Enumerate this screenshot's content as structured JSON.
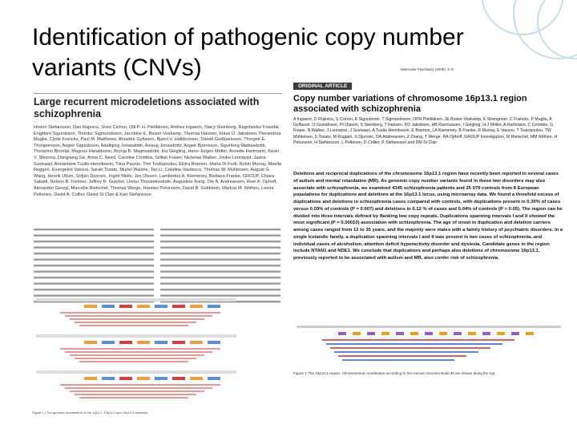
{
  "slide": {
    "title": "Identification of pathogenic copy number variants (CNVs)"
  },
  "left_paper": {
    "title": "Large recurrent microdeletions associated with schizophrenia",
    "authors": "Hreinn Stefansson, Dan Rujescu, Sven Cichon, Olli P. H. Pietiläinen, Andres Ingason, Stacy Steinberg, Ragnheidur Fossdal, Engilbert Sigurdsson, Thordur Sigmundsson, Jacobine E. Buizer-Voskamp, Thomas Hansen, Klaus D. Jakobsen, Pierandrea Muglia, Clyde Francks, Paul M. Matthews, Arnaldur Gylfason, Bjarni V. Halldorsson, Daniel Gudbjartsson, Thorgeir E. Thorgeirsson, Asgeir Sigurdsson, Adalbjorg Jonasdottir, Aslaug Jonasdottir, Asgeir Bjornsson, Sigurborg Mattiasdottir, Thorarinn Blondal, Magnus Haraldsson, Brynja B. Magnusdottir, Ina Giegling, Hans-Jürgen Möller, Annette Hartmann, Kevin V. Shianna, Dongliang Ge, Anna C. Need, Caroline Crombie, Gillian Fraser, Nicholas Walker, Jouko Lonnqvist, Jaana Suvisaari, Annamarie Tuulio-Henriksson, Tiina Paunio, Timi Toulopoulou, Elvira Bramon, Marta Di Forti, Robin Murray, Mirella Ruggeri, Evangelos Vassos, Sarah Tosato, Muriel Walshe, Tao Li, Catalina Vasilescu, Thomas W. Mühleisen, August G. Wang, Henrik Ullum, Srdjan Djurovic, Ingrid Melle, Jes Olesen, Lambertus A. Kiemeney, Barbara Franke, GROUP, Chiara Sabatti, Nelson B. Freimer, Jeffrey R. Gulcher, Unnur Thorsteinsdottir, Augustine Kong, Ole A. Andreassen, Roel A. Ophoff, Alexander Georgi, Marcella Rietschel, Thomas Werge, Hannes Petursson, David B. Goldstein, Markus M. Nöthen, Leena Peltonen, David A. Collier, David St Clair & Kari Stefansson",
    "caption": "Figure 1 | The genomic architecture of the 1q21.1, 15q11.2 and 15q13.3 deletions."
  },
  "right_paper": {
    "journal": "Molecular Psychiatry (2009), 1–8",
    "section": "ORIGINAL ARTICLE",
    "title": "Copy number variations of chromosome 16p13.1 region associated with schizophrenia",
    "authors": "A Ingason, D Rujescu, S Cichon, E Sigurdsson, T Sigmundsson, OPH Pietiläinen, JE Buizer-Voskamp, E Strengman, C Francks, P Muglia, A Gylfason, O Gustafsson, PI Olason, S Steinberg, T Hansen, KD Jakobsen, HB Rasmussen, I Giegling, H-J Möller, A Hartmann, C Crombie, G Fraser, N Walker, J Lonnqvist, J Suvisaari, A Tuulio-Henriksson, E Bramon, LA Kiemeney, B Franke, R Murray, E Vassos, T Toulopoulou, TW Mühleisen, S Tosato, M Ruggeri, S Djurovic, OA Andreassen, Z Zhang, T Werge, RA Ophoff, GROUP Investigators, M Rietschel, MM Nöthen, H Petursson, H Stefansson, L Peltonen, D Collier, K Stefansson and DM St Clair",
    "abstract": "Deletions and reciprocal duplications of the chromosome 16p13.1 region have recently been reported in several cases of autism and mental retardation (MR). As genomic copy number variants found in these two disorders may also associate with schizophrenia, we examined 4345 schizophrenia patients and 35 079 controls from 8 European populations for duplications and deletions at the 16p13.1 locus, using microarray data. We found a threefold excess of duplications and deletions in schizophrenia cases compared with controls, with duplications present in 0.30% of cases versus 0.09% of controls (P = 0.007) and deletions in 0.12 % of cases and 0.04% of controls (P > 0.05). The region can be divided into three intervals defined by flanking low copy repeats. Duplications spanning intervals I and II showed the most significant (P = 0.00010) association with schizophrenia. The age of onset in duplication and deletion carriers among cases ranged from 12 to 35 years, and the majority were males with a family history of psychiatric disorders. In a single Icelandic family, a duplication spanning intervals I and II was present in two cases of schizophrenia, and individual cases of alcoholism, attention deficit hyperactivity disorder and dyslexia. Candidate genes in the region include NTAN1 and NDE1. We conclude that duplications and perhaps also deletions of chromosome 16p13.1, previously reported to be associated with autism and MR, also confer risk of schizophrenia.",
    "caption": "Figure 1 The 16p13.1 region. Chromosomal coordinates according to the Human Genome Build 36 are shown along the top."
  }
}
